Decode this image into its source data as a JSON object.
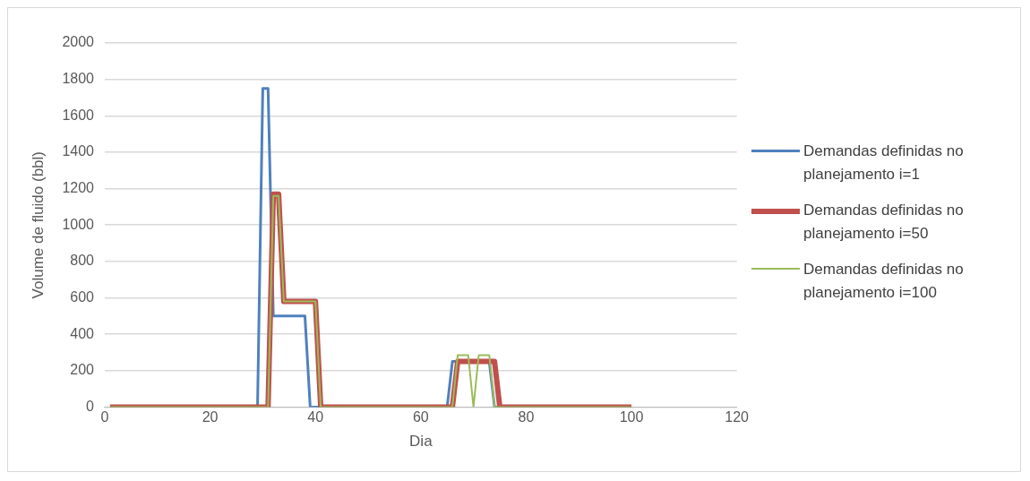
{
  "chart_data": {
    "type": "line",
    "xlabel": "Dia",
    "ylabel": "Volume de fluido (bbl)",
    "xlim": [
      0,
      120
    ],
    "xticks": [
      0,
      20,
      40,
      60,
      80,
      100,
      120
    ],
    "ylim": [
      0,
      2000
    ],
    "yticks": [
      0,
      200,
      400,
      600,
      800,
      1000,
      1200,
      1400,
      1600,
      1800,
      2000
    ],
    "grid": "y",
    "legend": "right",
    "marker": "none",
    "series": [
      {
        "name": "Demandas definidas no planejamento i=1",
        "color": "#4f81bd",
        "x": [
          1,
          29,
          30,
          31,
          32,
          38,
          39,
          65,
          66,
          73,
          74,
          100
        ],
        "values": [
          0,
          0,
          1750,
          1750,
          500,
          500,
          0,
          0,
          250,
          250,
          0,
          0
        ]
      },
      {
        "name": "Demandas definidas no planejamento i=50",
        "color": "#c0504d",
        "x": [
          1,
          31,
          32,
          33,
          34,
          40,
          41,
          66,
          67,
          74,
          75,
          100
        ],
        "values": [
          0,
          0,
          1170,
          1170,
          580,
          580,
          0,
          0,
          250,
          250,
          0,
          0
        ]
      },
      {
        "name": "Demandas definidas no planejamento i=100",
        "color": "#9bbb59",
        "x": [
          1,
          31,
          32,
          33,
          34,
          40,
          41,
          66,
          67,
          69,
          70,
          71,
          73,
          74,
          100
        ],
        "values": [
          0,
          0,
          1160,
          1160,
          580,
          580,
          0,
          0,
          285,
          285,
          0,
          285,
          285,
          0,
          0
        ]
      }
    ]
  }
}
